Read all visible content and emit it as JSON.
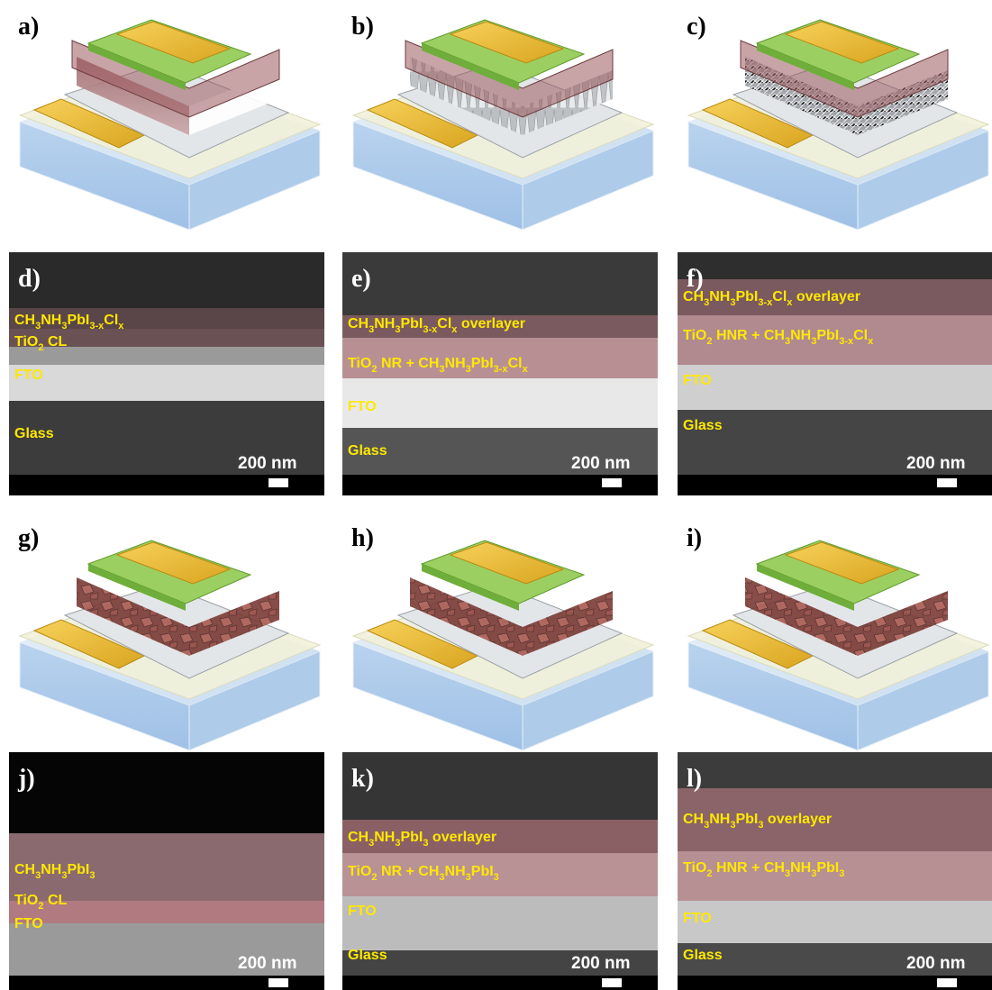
{
  "panels": [
    {
      "label": "a)"
    },
    {
      "label": "b)"
    },
    {
      "label": "c)"
    },
    {
      "label": "d)",
      "layers": [
        [
          {
            "text": "CH",
            "sub": "3"
          },
          {
            "text": "NH",
            "sub": "3"
          },
          {
            "text": "PbI",
            "sub": "3-x"
          },
          {
            "text": "Cl",
            "sub": "x"
          }
        ],
        [
          {
            "text": "TiO",
            "sub": "2"
          },
          {
            "text": " CL"
          }
        ],
        [
          {
            "text": "FTO"
          }
        ],
        [
          {
            "text": "Glass"
          }
        ]
      ],
      "scale": "200 nm"
    },
    {
      "label": "e)",
      "layers": [
        [
          {
            "text": "CH",
            "sub": "3"
          },
          {
            "text": "NH",
            "sub": "3"
          },
          {
            "text": "PbI",
            "sub": "3-x"
          },
          {
            "text": "Cl",
            "sub": "x"
          },
          {
            "text": " overlayer"
          }
        ],
        [
          {
            "text": "TiO",
            "sub": "2"
          },
          {
            "text": " NR + CH",
            "sub": "3"
          },
          {
            "text": "NH",
            "sub": "3"
          },
          {
            "text": "PbI",
            "sub": "3-x"
          },
          {
            "text": "Cl",
            "sub": "x"
          }
        ],
        [
          {
            "text": "FTO"
          }
        ],
        [
          {
            "text": "Glass"
          }
        ]
      ],
      "scale": "200 nm"
    },
    {
      "label": "f)",
      "layers": [
        [
          {
            "text": "CH",
            "sub": "3"
          },
          {
            "text": "NH",
            "sub": "3"
          },
          {
            "text": "PbI",
            "sub": "3-x"
          },
          {
            "text": "Cl",
            "sub": "x"
          },
          {
            "text": " overlayer"
          }
        ],
        [
          {
            "text": "TiO",
            "sub": "2"
          },
          {
            "text": " HNR + CH",
            "sub": "3"
          },
          {
            "text": "NH",
            "sub": "3"
          },
          {
            "text": "PbI",
            "sub": "3-x"
          },
          {
            "text": "Cl",
            "sub": "x"
          }
        ],
        [
          {
            "text": "FTO"
          }
        ],
        [
          {
            "text": "Glass"
          }
        ]
      ],
      "scale": "200 nm"
    },
    {
      "label": "g)"
    },
    {
      "label": "h)"
    },
    {
      "label": "i)"
    },
    {
      "label": "j)",
      "layers": [
        [
          {
            "text": "CH",
            "sub": "3"
          },
          {
            "text": "NH",
            "sub": "3"
          },
          {
            "text": "PbI",
            "sub": "3"
          }
        ],
        [
          {
            "text": "TiO",
            "sub": "2"
          },
          {
            "text": " CL"
          }
        ],
        [
          {
            "text": "FTO"
          }
        ]
      ],
      "scale": "200 nm"
    },
    {
      "label": "k)",
      "layers": [
        [
          {
            "text": "CH",
            "sub": "3"
          },
          {
            "text": "NH",
            "sub": "3"
          },
          {
            "text": "PbI",
            "sub": "3"
          },
          {
            "text": " overlayer"
          }
        ],
        [
          {
            "text": "TiO",
            "sub": "2"
          },
          {
            "text": " NR + CH",
            "sub": "3"
          },
          {
            "text": "NH",
            "sub": "3"
          },
          {
            "text": "PbI",
            "sub": "3"
          }
        ],
        [
          {
            "text": "FTO"
          }
        ],
        [
          {
            "text": "Glass"
          }
        ]
      ],
      "scale": "200 nm"
    },
    {
      "label": "l)",
      "layers": [
        [
          {
            "text": "CH",
            "sub": "3"
          },
          {
            "text": "NH",
            "sub": "3"
          },
          {
            "text": "PbI",
            "sub": "3"
          },
          {
            "text": " overlayer"
          }
        ],
        [
          {
            "text": "TiO",
            "sub": "2"
          },
          {
            "text": " HNR + CH",
            "sub": "3"
          },
          {
            "text": "NH",
            "sub": "3"
          },
          {
            "text": "PbI",
            "sub": "3"
          }
        ],
        [
          {
            "text": "FTO"
          }
        ],
        [
          {
            "text": "Glass"
          }
        ]
      ],
      "scale": "200 nm"
    }
  ]
}
